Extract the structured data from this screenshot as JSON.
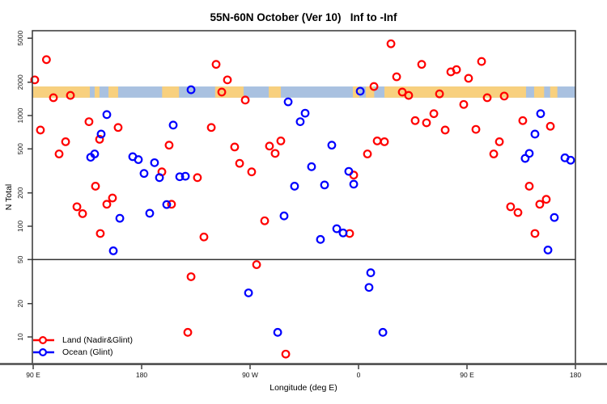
{
  "chart_data": {
    "type": "scatter",
    "title": "55N-60N October (Ver 10)   Inf to -Inf",
    "xlabel": "Longitude (deg E)",
    "ylabel": "N Total",
    "x_axis_note": "longitude unwrapped eastward: 90E -> 180 -> 90W -> 0 -> 90E -> 180 (90..540 deg)",
    "x_range": [
      90,
      540
    ],
    "y_scale": "log",
    "y_range": [
      5.6,
      5800
    ],
    "grid": false,
    "reference_line_y": 50,
    "x_ticks": [
      {
        "lon": 90,
        "label": "90 E"
      },
      {
        "lon": 180,
        "label": "180"
      },
      {
        "lon": 270,
        "label": "90 W"
      },
      {
        "lon": 360,
        "label": "0"
      },
      {
        "lon": 450,
        "label": "90 E"
      },
      {
        "lon": 540,
        "label": "180"
      }
    ],
    "y_ticks": [
      5000,
      2000,
      1000,
      500,
      200,
      100,
      50,
      20,
      10
    ],
    "map_strip": {
      "description": "world land/ocean band for 55N-60N drawn across the top of the plot",
      "value_range": [
        1450,
        1830
      ],
      "land_color": "#f8d07e",
      "ocean_color": "#a9c1e0",
      "land_segments_lon": [
        [
          90,
          137
        ],
        [
          141,
          145
        ],
        [
          152.5,
          160.5
        ],
        [
          197,
          211
        ],
        [
          241,
          264.6
        ],
        [
          285.5,
          295.5
        ],
        [
          355.3,
          360.7
        ],
        [
          366,
          373
        ],
        [
          381.5,
          499
        ],
        [
          505.7,
          514
        ],
        [
          519,
          525
        ]
      ]
    },
    "series": [
      {
        "name": "Land (Nadir&Glint)",
        "color": "#ff0000",
        "points": [
          [
            101,
            3200
          ],
          [
            91.3,
            2100
          ],
          [
            106.8,
            1450
          ],
          [
            120.9,
            1520
          ],
          [
            241.8,
            2900
          ],
          [
            251.2,
            2100
          ],
          [
            246.5,
            1630
          ],
          [
            266,
            1380
          ],
          [
            136.3,
            880
          ],
          [
            160.5,
            780
          ],
          [
            96,
            740
          ],
          [
            116.9,
            580
          ],
          [
            111.5,
            450
          ],
          [
            202.8,
            540
          ],
          [
            237.8,
            780
          ],
          [
            257.2,
            520
          ],
          [
            295.5,
            590
          ],
          [
            286.1,
            530
          ],
          [
            290.8,
            455
          ],
          [
            261.3,
            370
          ],
          [
            271.3,
            310
          ],
          [
            196.8,
            310
          ],
          [
            226.3,
            275
          ],
          [
            141.7,
            230
          ],
          [
            155.8,
            180
          ],
          [
            204.8,
            158
          ],
          [
            386.9,
            4450
          ],
          [
            412.4,
            2900
          ],
          [
            462.1,
            3080
          ],
          [
            441.3,
            2600
          ],
          [
            436.6,
            2480
          ],
          [
            451.3,
            2170
          ],
          [
            391.6,
            2240
          ],
          [
            372.8,
            1830
          ],
          [
            396.3,
            1630
          ],
          [
            401.6,
            1520
          ],
          [
            427.2,
            1570
          ],
          [
            466.8,
            1450
          ],
          [
            480.9,
            1500
          ],
          [
            447.3,
            1260
          ],
          [
            422.5,
            1040
          ],
          [
            407,
            900
          ],
          [
            416.4,
            860
          ],
          [
            431.9,
            740
          ],
          [
            457.4,
            750
          ],
          [
            476.9,
            580
          ],
          [
            472.2,
            450
          ],
          [
            375.5,
            590
          ],
          [
            381.5,
            580
          ],
          [
            367.4,
            450
          ],
          [
            496.3,
            900
          ],
          [
            519.2,
            800
          ],
          [
            356,
            290
          ],
          [
            501.7,
            230
          ],
          [
            515.8,
            175
          ],
          [
            126.3,
            150
          ],
          [
            131,
            130
          ],
          [
            151.1,
            158
          ],
          [
            145.7,
            86
          ],
          [
            231.7,
            80
          ],
          [
            282.1,
            112
          ],
          [
            275.4,
            45
          ],
          [
            221,
            35
          ],
          [
            218.3,
            11
          ],
          [
            299.6,
            7
          ],
          [
            352.6,
            86
          ],
          [
            486.2,
            150
          ],
          [
            492.3,
            133
          ],
          [
            510.4,
            158
          ],
          [
            506.4,
            86
          ],
          [
            145.1,
            610
          ]
        ]
      },
      {
        "name": "Ocean (Glint)",
        "color": "#0000ff",
        "points": [
          [
            221,
            1710
          ],
          [
            301.6,
            1330
          ],
          [
            151.1,
            1020
          ],
          [
            146.4,
            680
          ],
          [
            206.2,
            820
          ],
          [
            311.6,
            880
          ],
          [
            141,
            450
          ],
          [
            137.7,
            420
          ],
          [
            172.6,
            425
          ],
          [
            177.3,
            400
          ],
          [
            190.7,
            375
          ],
          [
            182,
            300
          ],
          [
            194.8,
            275
          ],
          [
            211.6,
            280
          ],
          [
            216.3,
            283
          ],
          [
            306.9,
            230
          ],
          [
            361.4,
            1660
          ],
          [
            315.7,
            1050
          ],
          [
            337.8,
            540
          ],
          [
            321,
            345
          ],
          [
            351.9,
            313
          ],
          [
            331.8,
            236
          ],
          [
            356,
            240
          ],
          [
            511.1,
            1040
          ],
          [
            506.4,
            680
          ],
          [
            501.7,
            455
          ],
          [
            498.3,
            410
          ],
          [
            531.3,
            415
          ],
          [
            536,
            395
          ],
          [
            161.9,
            118
          ],
          [
            186.7,
            131
          ],
          [
            200.8,
            157
          ],
          [
            298.2,
            124
          ],
          [
            156.5,
            60
          ],
          [
            268.7,
            25
          ],
          [
            292.9,
            11
          ],
          [
            328.4,
            76
          ],
          [
            341.9,
            95
          ],
          [
            347.2,
            87
          ],
          [
            522.5,
            120
          ],
          [
            517.2,
            61
          ],
          [
            370.1,
            38
          ],
          [
            368.7,
            28
          ],
          [
            380.2,
            11
          ]
        ]
      }
    ],
    "legend_position": "bottom-left"
  },
  "legend": {
    "items": [
      {
        "label": "Land (Nadir&Glint)",
        "color": "#ff0000"
      },
      {
        "label": "Ocean (Glint)",
        "color": "#0000ff"
      }
    ]
  }
}
